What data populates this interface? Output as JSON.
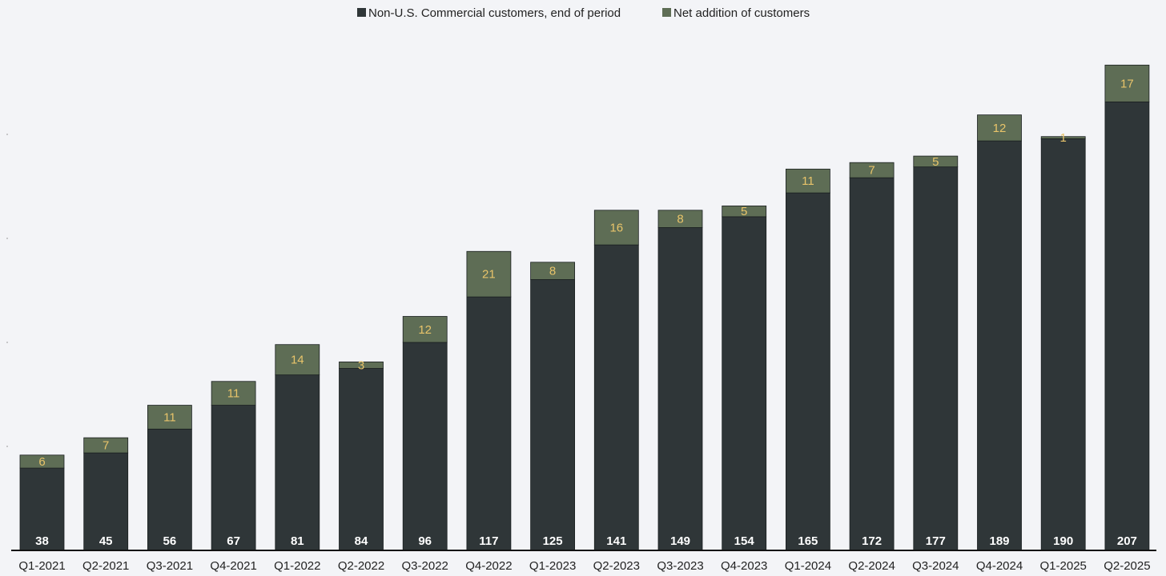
{
  "chart_data": {
    "type": "bar",
    "stacked": true,
    "title": "",
    "xlabel": "",
    "ylabel": "",
    "ylim": [
      0,
      240
    ],
    "legend_position": "top-center",
    "categories": [
      "Q1-2021",
      "Q2-2021",
      "Q3-2021",
      "Q4-2021",
      "Q1-2022",
      "Q2-2022",
      "Q3-2022",
      "Q4-2022",
      "Q1-2023",
      "Q2-2023",
      "Q3-2023",
      "Q4-2023",
      "Q1-2024",
      "Q2-2024",
      "Q3-2024",
      "Q4-2024",
      "Q1-2025",
      "Q2-2025"
    ],
    "series": [
      {
        "name": "Non-U.S. Commercial customers, end of period",
        "color": "#2f3638",
        "values": [
          38,
          45,
          56,
          67,
          81,
          84,
          96,
          117,
          125,
          141,
          149,
          154,
          165,
          172,
          177,
          189,
          190,
          207
        ]
      },
      {
        "name": "Net addition of customers",
        "color": "#5e6d55",
        "values": [
          6,
          7,
          11,
          11,
          14,
          3,
          12,
          21,
          8,
          16,
          8,
          5,
          11,
          7,
          5,
          12,
          1,
          17
        ]
      }
    ]
  }
}
